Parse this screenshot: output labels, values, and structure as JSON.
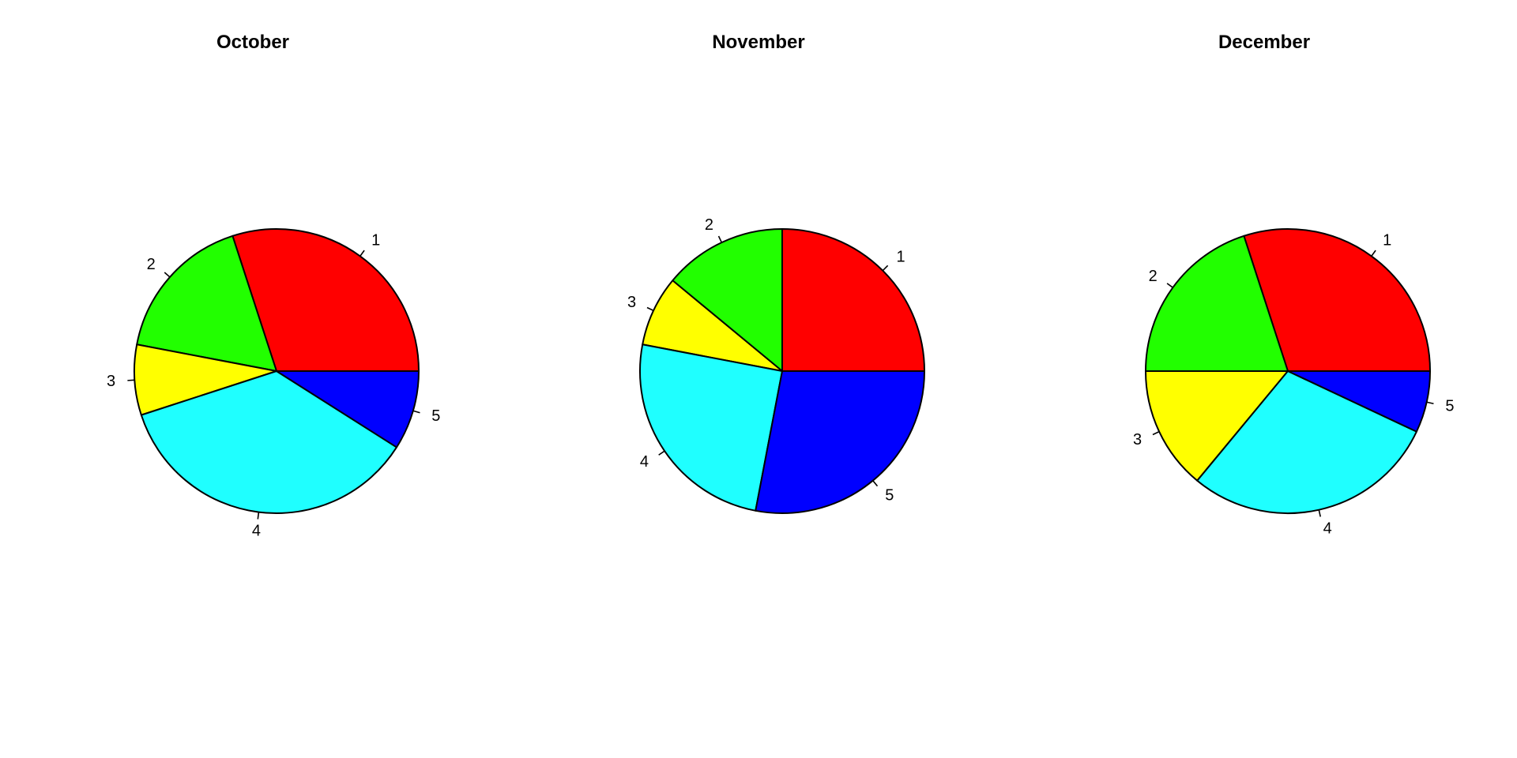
{
  "chart_data": [
    {
      "type": "pie",
      "title": "October",
      "labels": [
        "1",
        "2",
        "3",
        "4",
        "5"
      ],
      "values": [
        30,
        17,
        8,
        36,
        9
      ],
      "colors": [
        "#ff0000",
        "#22ff00",
        "#ffff00",
        "#1fffff",
        "#0000ff"
      ],
      "start_angle_deg": 0,
      "direction": "counterclockwise"
    },
    {
      "type": "pie",
      "title": "November",
      "labels": [
        "1",
        "2",
        "3",
        "4",
        "5"
      ],
      "values": [
        25,
        14,
        8,
        25,
        28
      ],
      "colors": [
        "#ff0000",
        "#22ff00",
        "#ffff00",
        "#1fffff",
        "#0000ff"
      ],
      "start_angle_deg": 0,
      "direction": "counterclockwise"
    },
    {
      "type": "pie",
      "title": "December",
      "labels": [
        "1",
        "2",
        "3",
        "4",
        "5"
      ],
      "values": [
        30,
        20,
        14,
        29,
        7
      ],
      "colors": [
        "#ff0000",
        "#22ff00",
        "#ffff00",
        "#1fffff",
        "#0000ff"
      ],
      "start_angle_deg": 0,
      "direction": "counterclockwise"
    }
  ]
}
